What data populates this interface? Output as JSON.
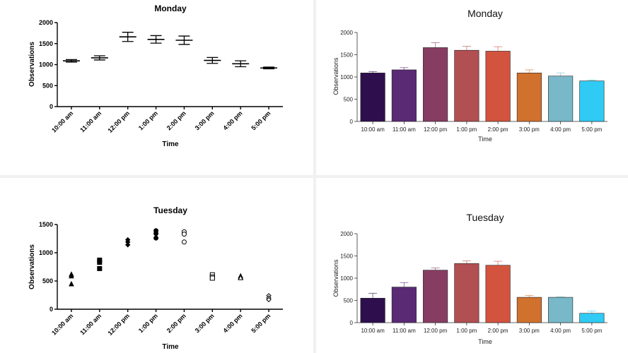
{
  "chart_data": [
    {
      "id": "monday_errorbar",
      "type": "errorbar",
      "title": "Monday",
      "xlabel": "Time",
      "ylabel": "Observations",
      "ylim": [
        0,
        2000
      ],
      "yticks": [
        0,
        500,
        1000,
        1500,
        2000
      ],
      "categories": [
        "10:00 am",
        "11:00 am",
        "12:00 pm",
        "1:00 pm",
        "2:00 pm",
        "3:00 pm",
        "4:00 pm",
        "5:00 pm"
      ],
      "values": [
        1090,
        1160,
        1660,
        1600,
        1580,
        1100,
        1020,
        920
      ],
      "errors": [
        30,
        50,
        110,
        90,
        100,
        70,
        70,
        20
      ]
    },
    {
      "id": "monday_bar",
      "type": "bar",
      "title": "Monday",
      "xlabel": "Time",
      "ylabel": "Observations",
      "ylim": [
        0,
        2000
      ],
      "yticks": [
        0,
        500,
        1000,
        1500,
        2000
      ],
      "categories": [
        "10:00 am",
        "11:00 am",
        "12:00 pm",
        "1:00 pm",
        "2:00 pm",
        "3:00 pm",
        "4:00 pm",
        "5:00 pm"
      ],
      "values": [
        1090,
        1160,
        1660,
        1600,
        1580,
        1090,
        1020,
        910
      ],
      "errors": [
        30,
        50,
        110,
        90,
        100,
        70,
        70,
        20
      ],
      "colors": [
        "#2e0f4e",
        "#5a2a74",
        "#873d62",
        "#b24f52",
        "#d2533e",
        "#d0712e",
        "#78b8c8",
        "#2fcbf4"
      ]
    },
    {
      "id": "tuesday_scatter",
      "type": "scatter",
      "title": "Tuesday",
      "xlabel": "Time",
      "ylabel": "Observations",
      "ylim": [
        0,
        1500
      ],
      "yticks": [
        0,
        500,
        1000,
        1500
      ],
      "categories": [
        "10:00 am",
        "11:00 am",
        "12:00 pm",
        "1:00 pm",
        "2:00 pm",
        "3:00 pm",
        "4:00 pm",
        "5:00 pm"
      ],
      "points": [
        [
          620,
          590,
          450
        ],
        [
          870,
          830,
          720
        ],
        [
          1230,
          1190,
          1140
        ],
        [
          1390,
          1340,
          1260
        ],
        [
          1370,
          1330,
          1190
        ],
        [
          610,
          570,
          550
        ],
        [
          590,
          570,
          560
        ],
        [
          240,
          200,
          170
        ]
      ],
      "markers": [
        "triangle-filled",
        "square-filled",
        "diamond-filled",
        "circle-filled",
        "circle-open",
        "square-open",
        "triangle-open",
        "diamond-open"
      ]
    },
    {
      "id": "tuesday_bar",
      "type": "bar",
      "title": "Tuesday",
      "xlabel": "Time",
      "ylabel": "Observations",
      "ylim": [
        0,
        2000
      ],
      "yticks": [
        0,
        500,
        1000,
        1500,
        2000
      ],
      "categories": [
        "10:00 am",
        "11:00 am",
        "12:00 pm",
        "1:00 pm",
        "2:00 pm",
        "3:00 pm",
        "4:00 pm",
        "5:00 pm"
      ],
      "values": [
        550,
        800,
        1180,
        1330,
        1290,
        570,
        570,
        210
      ],
      "errors": [
        110,
        100,
        50,
        60,
        90,
        40,
        10,
        50
      ],
      "colors": [
        "#2e0f4e",
        "#5a2a74",
        "#873d62",
        "#b24f52",
        "#d2533e",
        "#d0712e",
        "#78b8c8",
        "#2fcbf4"
      ]
    }
  ]
}
